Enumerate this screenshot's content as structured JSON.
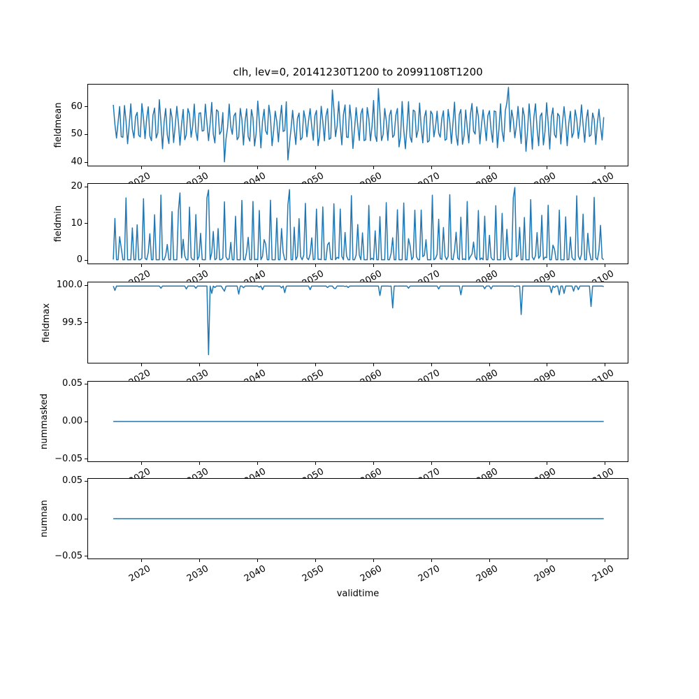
{
  "title": "clh, lev=0, 20141230T1200 to 20991108T1200",
  "xlabel": "validtime",
  "x": {
    "t_start": 2014.99,
    "t_end": 2099.85,
    "n_points": 310,
    "xlim": [
      2010.62,
      2104.0
    ],
    "xticks": [
      2020,
      2030,
      2040,
      2050,
      2060,
      2070,
      2080,
      2090,
      2100
    ],
    "xtick_labels": [
      "2020",
      "2030",
      "2040",
      "2050",
      "2060",
      "2070",
      "2080",
      "2090",
      "2100"
    ],
    "start_timestamp": "20141230T1200",
    "end_timestamp": "20991108T1200"
  },
  "line_color": "#1f77b4",
  "chart_data": [
    {
      "type": "line",
      "panel": "fieldmean",
      "ylabel": "fieldmean",
      "yticks": [
        40,
        50,
        60
      ],
      "ytick_labels": [
        "40",
        "50",
        "60"
      ],
      "ylim": [
        38.5,
        68.3
      ],
      "summary": {
        "mean": 54,
        "typical_low": 45,
        "typical_high": 62,
        "min": 39.9,
        "max": 67.3,
        "period_years": 1
      },
      "anomalies": [
        [
          2034.2,
          39.9
        ],
        [
          2045.3,
          40.6
        ],
        [
          2053.0,
          66.3
        ],
        [
          2060.8,
          66.8
        ],
        [
          2083.3,
          67.3
        ]
      ],
      "generator": {
        "kind": "seasonal_noise",
        "seed": 11,
        "base": 53.8,
        "amp": 7.0,
        "phase": 2014.75,
        "noise": 4.6,
        "clamp": [
          39.9,
          67.3
        ]
      }
    },
    {
      "type": "line",
      "panel": "fieldmin",
      "ylabel": "fieldmin",
      "yticks": [
        0,
        10,
        20
      ],
      "ytick_labels": [
        "0",
        "10",
        "20"
      ],
      "ylim": [
        -1.05,
        21.0
      ],
      "summary": {
        "baseline": 0,
        "spike_range": [
          8,
          20
        ],
        "min": 0,
        "max": 20,
        "period_years": 1
      },
      "anomalies": [
        [
          2023.2,
          17.9
        ],
        [
          2026.6,
          18.5
        ],
        [
          2031.5,
          19.3
        ],
        [
          2045.6,
          19.4
        ],
        [
          2084.5,
          20.0
        ]
      ],
      "generator": {
        "kind": "spiky",
        "seed": 22,
        "amp": 17,
        "pow": 3,
        "offset": -1.5,
        "phase": 2014.95,
        "noise": 4,
        "noise_off": 0.3,
        "max": 19.5
      }
    },
    {
      "type": "line",
      "panel": "fieldmax",
      "ylabel": "fieldmax",
      "yticks": [
        99.5,
        100.0
      ],
      "ytick_labels": [
        "99.5",
        "100.0"
      ],
      "ylim": [
        98.95,
        100.05
      ],
      "summary": {
        "baseline": 100.0,
        "min": 99.06,
        "max": 100.0
      },
      "spikes": [
        [
          2015.15,
          99.94
        ],
        [
          2023.1,
          99.97
        ],
        [
          2027.6,
          99.96
        ],
        [
          2031.35,
          99.8
        ],
        [
          2031.6,
          99.06
        ],
        [
          2031.9,
          99.9
        ],
        [
          2034.1,
          99.93
        ],
        [
          2036.7,
          99.89
        ],
        [
          2040.9,
          99.95
        ],
        [
          2044.6,
          99.91
        ],
        [
          2049.0,
          99.95
        ],
        [
          2053.2,
          99.97
        ],
        [
          2055.5,
          99.98
        ],
        [
          2061.1,
          99.87
        ],
        [
          2063.3,
          99.7
        ],
        [
          2066.0,
          99.97
        ],
        [
          2071.2,
          99.96
        ],
        [
          2075.2,
          99.88
        ],
        [
          2080.3,
          99.96
        ],
        [
          2085.7,
          99.61
        ],
        [
          2090.8,
          99.91
        ],
        [
          2092.1,
          99.88
        ],
        [
          2093.0,
          99.9
        ],
        [
          2094.5,
          99.93
        ],
        [
          2095.5,
          99.95
        ],
        [
          2097.6,
          99.72
        ]
      ],
      "generator": {
        "kind": "baseline_dips",
        "seed": 33,
        "baseline": 100.0,
        "micro_chance": 0.08,
        "micro_depth": 6
      }
    },
    {
      "type": "line",
      "panel": "nummasked",
      "ylabel": "nummasked",
      "yticks": [
        -0.05,
        0.0,
        0.05
      ],
      "ytick_labels": [
        "−0.05",
        "0.00",
        "0.05"
      ],
      "ylim": [
        -0.0542,
        0.0542
      ],
      "summary": {
        "constant_value": 0.0
      },
      "generator": {
        "kind": "constant",
        "seed": 44,
        "value": 0.0
      }
    },
    {
      "type": "line",
      "panel": "numnan",
      "ylabel": "numnan",
      "yticks": [
        -0.05,
        0.0,
        0.05
      ],
      "ytick_labels": [
        "−0.05",
        "0.00",
        "0.05"
      ],
      "ylim": [
        -0.0542,
        0.0542
      ],
      "summary": {
        "constant_value": 0.0
      },
      "generator": {
        "kind": "constant",
        "seed": 55,
        "value": 0.0
      }
    }
  ]
}
